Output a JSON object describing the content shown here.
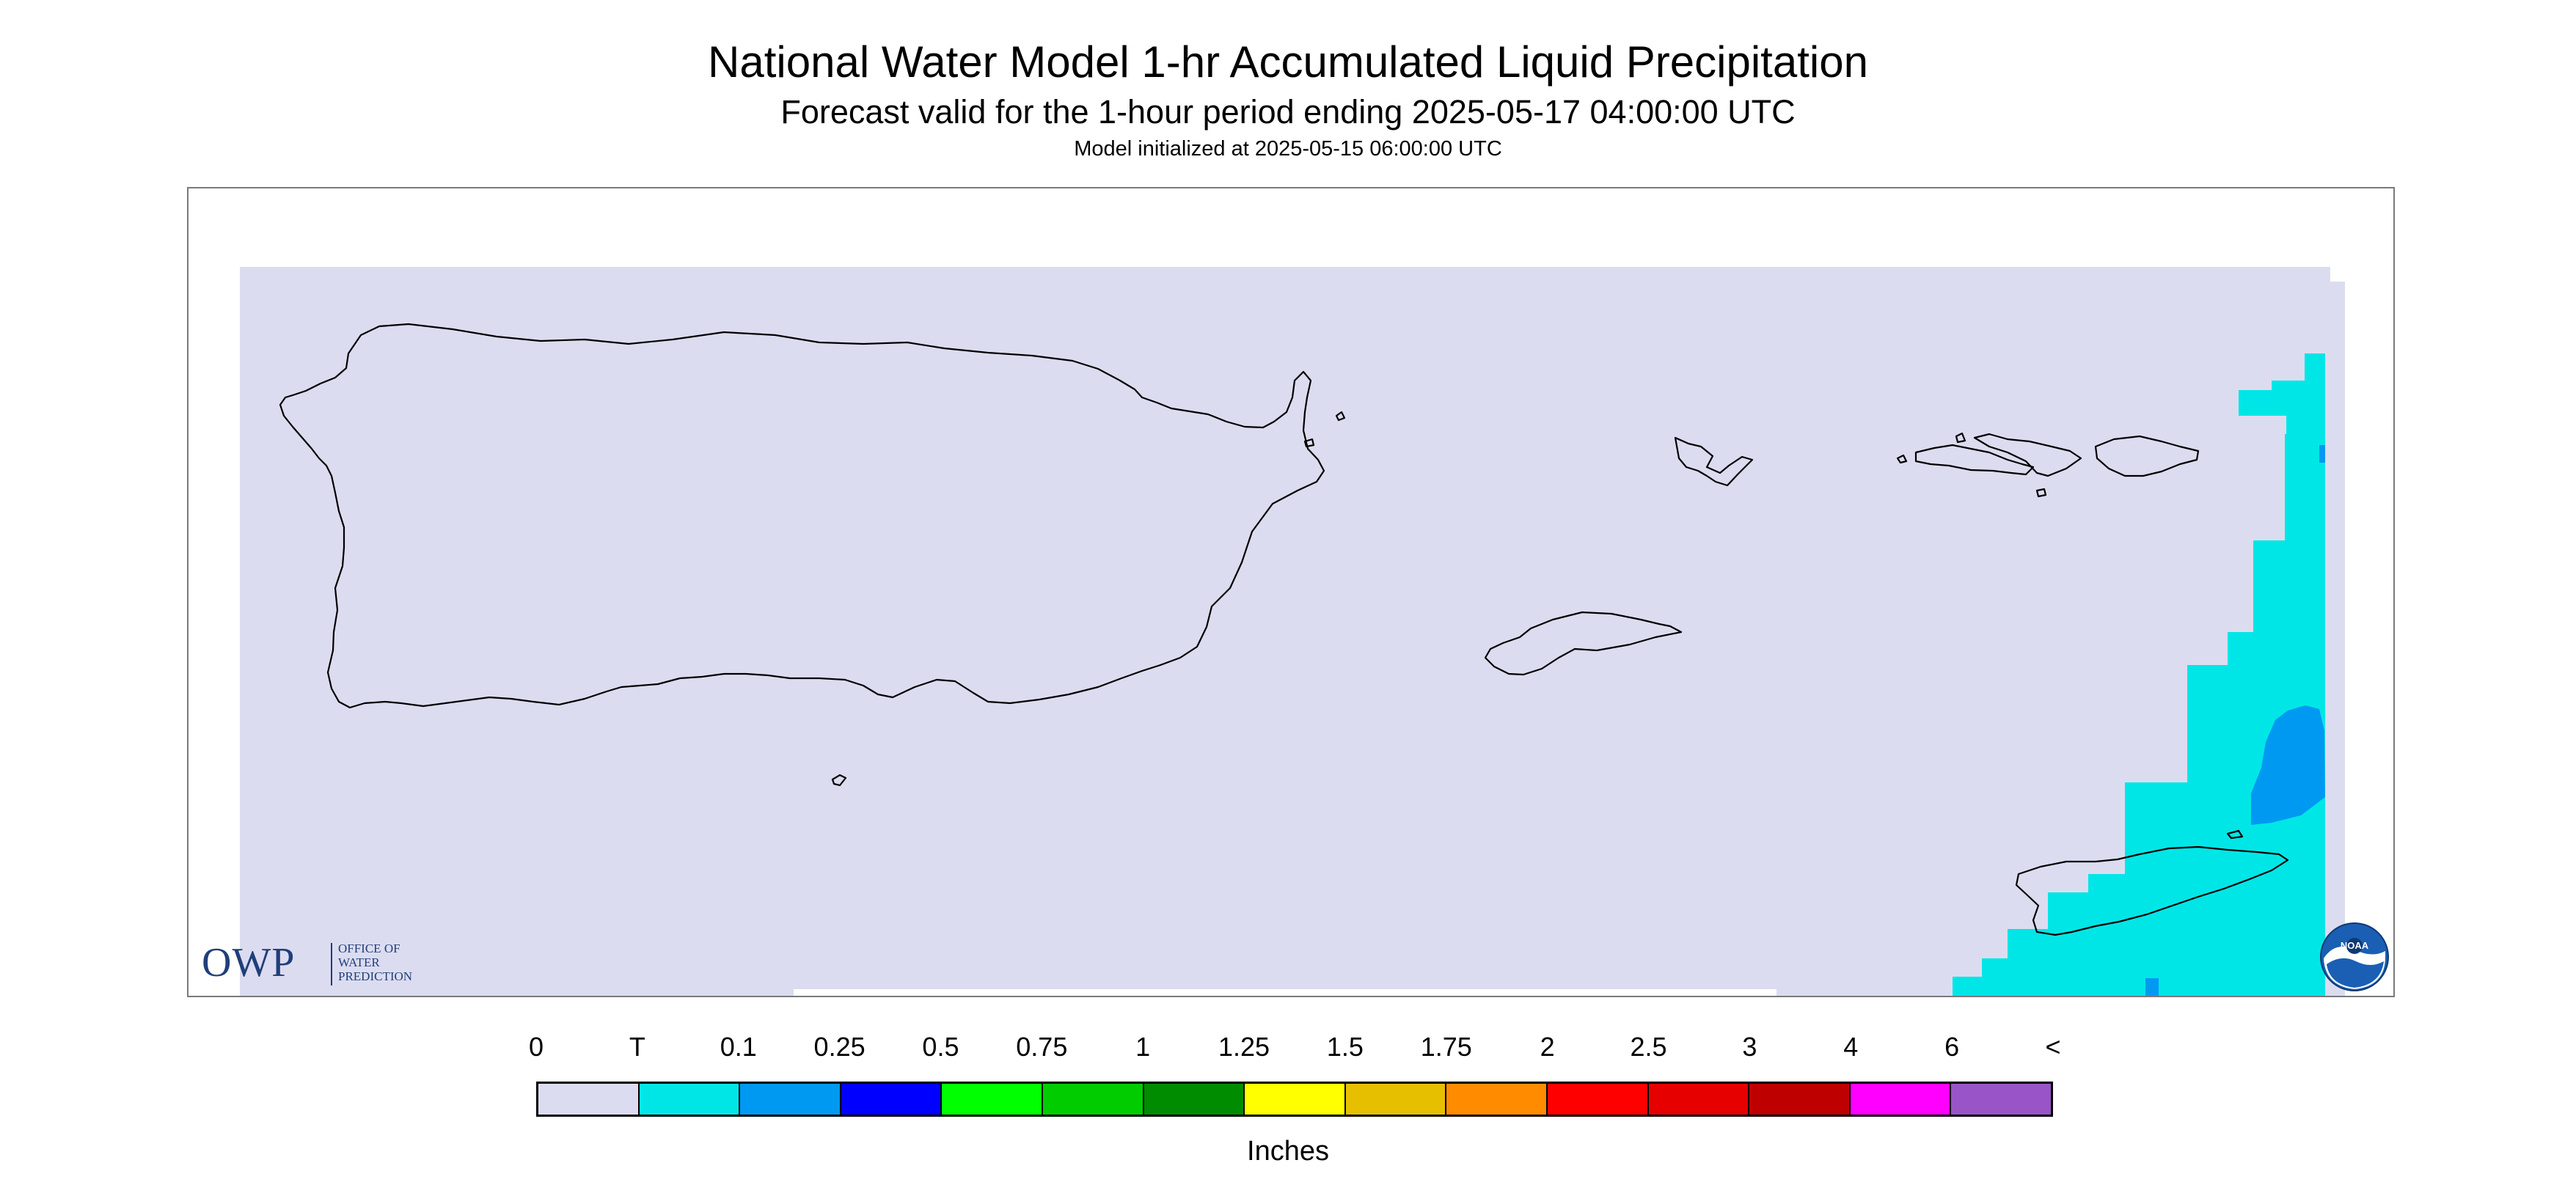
{
  "header": {
    "title": "National Water Model 1-hr Accumulated Liquid Precipitation",
    "subtitle": "Forecast valid for the 1-hour period ending 2025-05-17 04:00:00 UTC",
    "init": "Model initialized at 2025-05-15 06:00:00 UTC"
  },
  "map": {
    "region": "Puerto Rico and U.S. Virgin Islands",
    "background_color": "#dcdcf0",
    "precip_colors": {
      "trace": "#00e6e6",
      "light": "#0099f2"
    }
  },
  "logos": {
    "owp_mark": "OWP",
    "owp_lines": [
      "OFFICE OF",
      "WATER",
      "PREDICTION"
    ],
    "noaa_text": "NOAA"
  },
  "legend": {
    "ticks": [
      "0",
      "T",
      "0.1",
      "0.25",
      "0.5",
      "0.75",
      "1",
      "1.25",
      "1.5",
      "1.75",
      "2",
      "2.5",
      "3",
      "4",
      "6",
      "<"
    ],
    "colors": [
      "#dcdcf0",
      "#00e6e6",
      "#0099f2",
      "#0000ff",
      "#00ff00",
      "#00cc00",
      "#008c00",
      "#ffff00",
      "#e6bf00",
      "#ff8c00",
      "#ff0000",
      "#e60000",
      "#bf0000",
      "#ff00ff",
      "#9955c8"
    ],
    "units": "Inches"
  }
}
